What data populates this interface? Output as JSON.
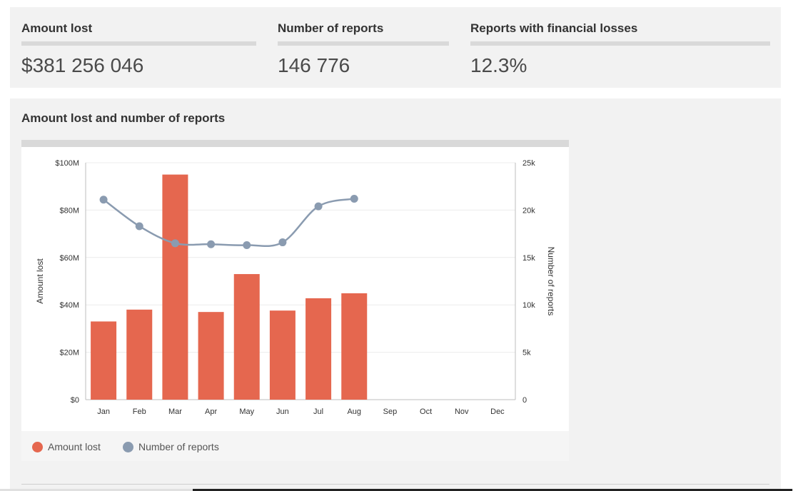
{
  "stats": [
    {
      "label": "Amount lost",
      "value": "$381 256 046"
    },
    {
      "label": "Number of reports",
      "value": "146 776"
    },
    {
      "label": "Reports with financial losses",
      "value": "12.3%"
    }
  ],
  "chart_title": "Amount lost and number of reports",
  "colors": {
    "bar": "#e5674f",
    "line": "#8a9bb0",
    "panel": "#f2f2f2"
  },
  "legend": [
    {
      "label": "Amount lost",
      "color": "#e5674f",
      "icon": "circle-icon"
    },
    {
      "label": "Number of reports",
      "color": "#8a9bb0",
      "icon": "circle-icon"
    }
  ],
  "chart_data": {
    "type": "bar+line",
    "title": "Amount lost and number of reports",
    "categories": [
      "Jan",
      "Feb",
      "Mar",
      "Apr",
      "May",
      "Jun",
      "Jul",
      "Aug",
      "Sep",
      "Oct",
      "Nov",
      "Dec"
    ],
    "series": [
      {
        "name": "Amount lost",
        "type": "bar",
        "axis": "left",
        "values": [
          33000000,
          38000000,
          95000000,
          37000000,
          53000000,
          37600000,
          42800000,
          44900000,
          null,
          null,
          null,
          null
        ]
      },
      {
        "name": "Number of reports",
        "type": "line",
        "axis": "right",
        "values": [
          21100,
          18300,
          16500,
          16400,
          16300,
          16600,
          20400,
          21200,
          null,
          null,
          null,
          null
        ]
      }
    ],
    "ylabel_left": "Amount lost",
    "ylabel_right": "Number of reports",
    "ylim_left": [
      0,
      100000000
    ],
    "ylim_right": [
      0,
      25000
    ],
    "yticks_left": [
      "$0",
      "$20M",
      "$40M",
      "$60M",
      "$80M",
      "$100M"
    ],
    "yticks_right": [
      "0",
      "5k",
      "10k",
      "15k",
      "20k",
      "25k"
    ],
    "grid": true,
    "legend_position": "bottom"
  }
}
